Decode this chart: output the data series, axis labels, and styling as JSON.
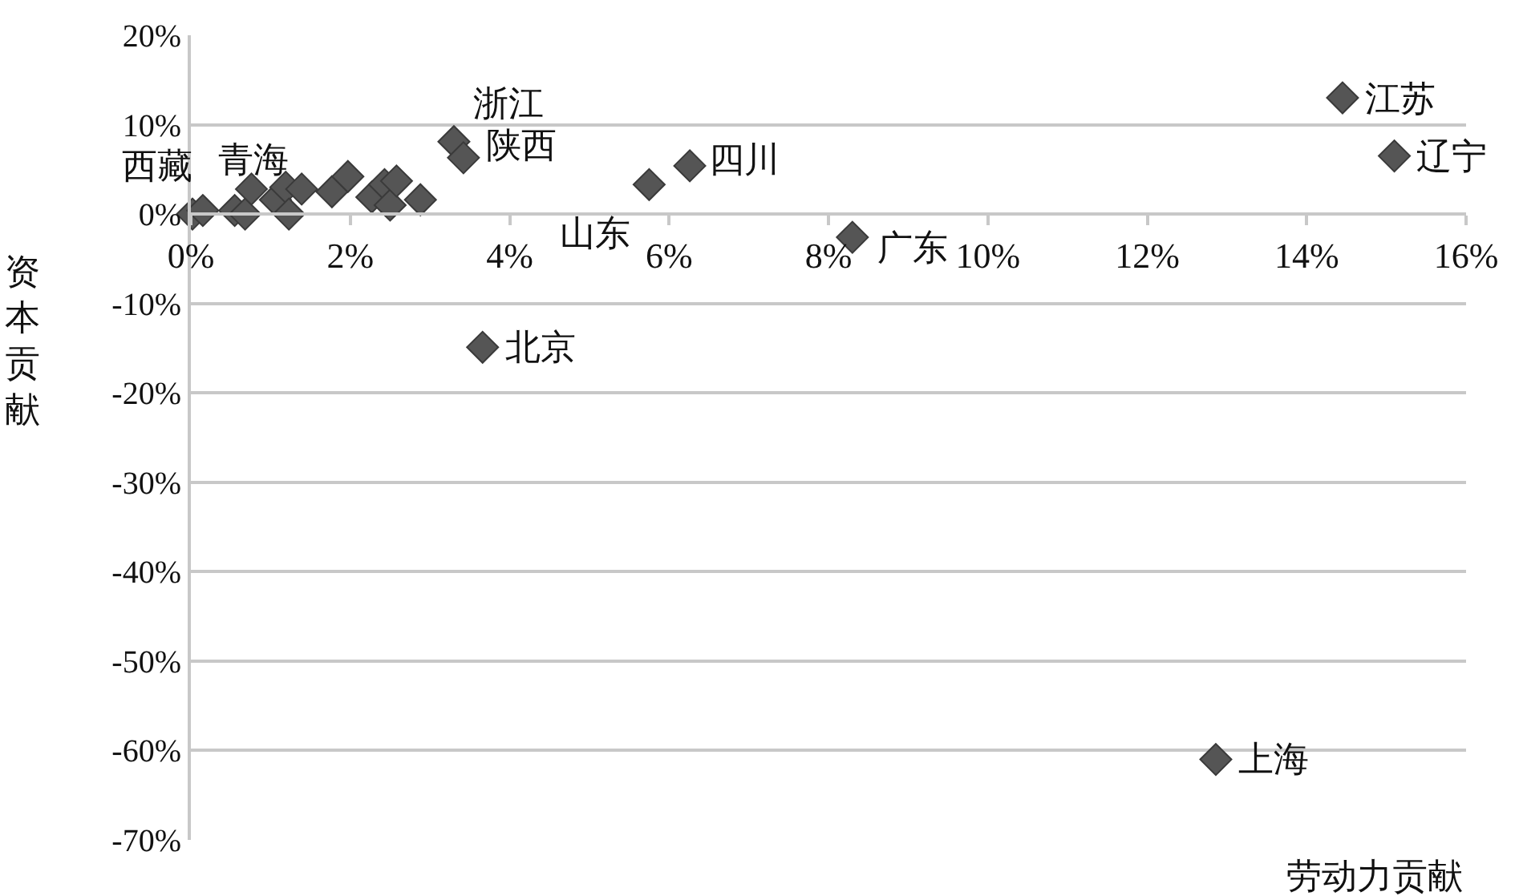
{
  "chart_data": {
    "type": "scatter",
    "xlabel": "劳动力贡献",
    "ylabel": "资本贡献",
    "x": [
      0.02,
      0.15,
      0.55,
      0.68,
      0.76,
      1.06,
      1.19,
      1.23,
      1.39,
      1.77,
      1.97,
      2.27,
      2.43,
      2.5,
      2.58,
      2.88,
      3.3,
      3.42,
      3.66,
      5.75,
      6.26,
      8.3,
      12.86,
      14.45,
      15.1
    ],
    "series": [
      {
        "color": "#555555",
        "values": [
          0,
          0.4,
          0.4,
          0,
          2.8,
          1.6,
          3.0,
          0,
          2.8,
          2.5,
          4.2,
          1.9,
          3.3,
          1.0,
          3.7,
          1.6,
          8.1,
          6.3,
          -14.9,
          3.3,
          5.4,
          -2.6,
          -61,
          13.0,
          6.5
        ]
      }
    ],
    "xlim": [
      0,
      16
    ],
    "ylim": [
      -70,
      20
    ],
    "xticks": [
      {
        "value": 0,
        "label": "0%"
      },
      {
        "value": 2,
        "label": "2%"
      },
      {
        "value": 4,
        "label": "4%"
      },
      {
        "value": 6,
        "label": "6%"
      },
      {
        "value": 8,
        "label": "8%"
      },
      {
        "value": 10,
        "label": "10%"
      },
      {
        "value": 12,
        "label": "12%"
      },
      {
        "value": 14,
        "label": "14%"
      },
      {
        "value": 16,
        "label": "16%"
      }
    ],
    "yticks": [
      {
        "value": -70,
        "label": "-70%"
      },
      {
        "value": -60,
        "label": "-60%"
      },
      {
        "value": -50,
        "label": "-50%"
      },
      {
        "value": -40,
        "label": "-40%"
      },
      {
        "value": -30,
        "label": "-30%"
      },
      {
        "value": -20,
        "label": "-20%"
      },
      {
        "value": -10,
        "label": "-10%"
      },
      {
        "value": 0,
        "label": "0%"
      },
      {
        "value": 10,
        "label": "10%"
      },
      {
        "value": 20,
        "label": "20%"
      }
    ],
    "annotations": [
      {
        "text": "西藏",
        "x": 0.02,
        "y": 0
      },
      {
        "text": "青海",
        "x": 0.15,
        "y": 0.4
      },
      {
        "text": "浙江",
        "x": 3.3,
        "y": 8.1
      },
      {
        "text": "陕西",
        "x": 3.42,
        "y": 6.3
      },
      {
        "text": "北京",
        "x": 3.66,
        "y": -14.9
      },
      {
        "text": "山东",
        "x": 5.75,
        "y": 3.3
      },
      {
        "text": "四川",
        "x": 6.26,
        "y": 5.4
      },
      {
        "text": "广东",
        "x": 8.3,
        "y": -2.6
      },
      {
        "text": "上海",
        "x": 12.86,
        "y": -61
      },
      {
        "text": "江苏",
        "x": 14.45,
        "y": 13.0
      },
      {
        "text": "辽宁",
        "x": 15.1,
        "y": 6.5
      }
    ],
    "grid": "y",
    "marker": "diamond"
  }
}
